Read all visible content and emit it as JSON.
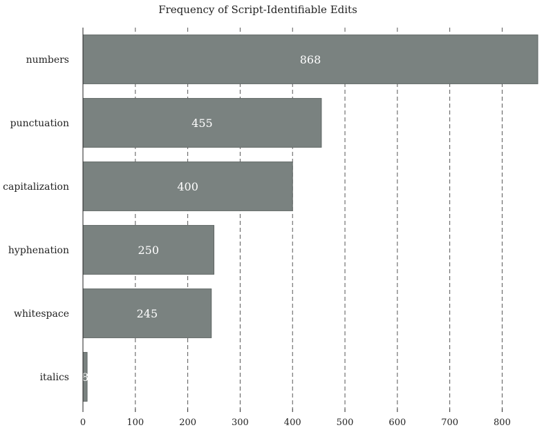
{
  "chart_data": {
    "type": "bar",
    "orientation": "horizontal",
    "title": "Frequency of Script-Identifiable Edits",
    "xlabel": "",
    "ylabel": "",
    "categories": [
      "numbers",
      "punctuation",
      "capitalization",
      "hyphenation",
      "whitespace",
      "italics"
    ],
    "values": [
      868,
      455,
      400,
      250,
      245,
      8
    ],
    "xlim": [
      0,
      868
    ],
    "xticks": [
      0,
      100,
      200,
      300,
      400,
      500,
      600,
      700,
      800
    ],
    "grid": "x-dashed",
    "bar_color": "#7a8280",
    "data_labels": true
  }
}
